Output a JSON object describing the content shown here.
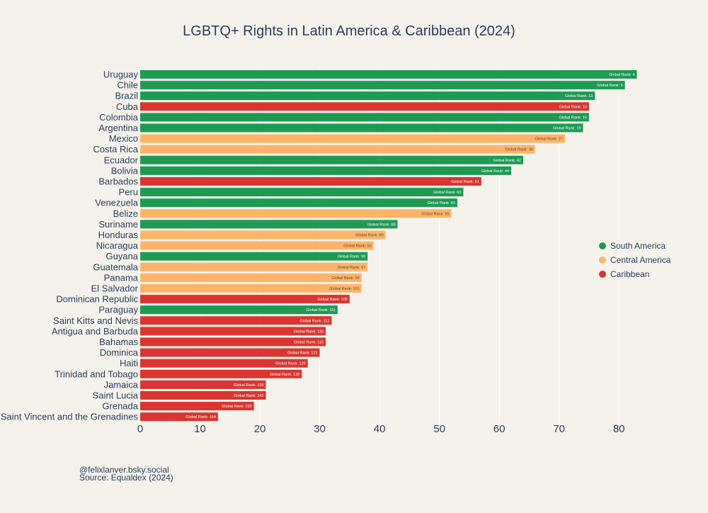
{
  "chart_data": {
    "type": "bar",
    "orientation": "horizontal",
    "title": "LGBTQ+ Rights in Latin America & Caribbean (2024)",
    "xlabel": "",
    "ylabel": "",
    "xlim": [
      0,
      84
    ],
    "xticks": [
      0,
      10,
      20,
      30,
      40,
      50,
      60,
      70,
      80
    ],
    "grid": true,
    "legend_position": "right",
    "colors": {
      "South America": "#1e9a53",
      "Central America": "#fdb469",
      "Caribbean": "#da3530"
    },
    "label_text_colors": {
      "South America": "#ffffff",
      "Central America": "#5a4632",
      "Caribbean": "#ffffff"
    },
    "legend": [
      "South America",
      "Central America",
      "Caribbean"
    ],
    "bars": [
      {
        "country": "Uruguay",
        "value": 83,
        "region": "South America",
        "label": "Global Rank: 4"
      },
      {
        "country": "Chile",
        "value": 81,
        "region": "South America",
        "label": "Global Rank: 5"
      },
      {
        "country": "Brazil",
        "value": 76,
        "region": "South America",
        "label": "Global Rank: 13"
      },
      {
        "country": "Cuba",
        "value": 75,
        "region": "Caribbean",
        "label": "Global Rank: 14"
      },
      {
        "country": "Colombia",
        "value": 75,
        "region": "South America",
        "label": "Global Rank: 16"
      },
      {
        "country": "Argentina",
        "value": 74,
        "region": "South America",
        "label": "Global Rank: 19"
      },
      {
        "country": "Mexico",
        "value": 71,
        "region": "Central America",
        "label": "Global Rank: 27"
      },
      {
        "country": "Costa Rica",
        "value": 66,
        "region": "Central America",
        "label": "Global Rank: 36"
      },
      {
        "country": "Ecuador",
        "value": 64,
        "region": "South America",
        "label": "Global Rank: 42"
      },
      {
        "country": "Bolivia",
        "value": 62,
        "region": "South America",
        "label": "Global Rank: 44"
      },
      {
        "country": "Barbados",
        "value": 57,
        "region": "Caribbean",
        "label": "Global Rank: 51"
      },
      {
        "country": "Peru",
        "value": 54,
        "region": "South America",
        "label": "Global Rank: 60"
      },
      {
        "country": "Venezuela",
        "value": 53,
        "region": "South America",
        "label": "Global Rank: 63"
      },
      {
        "country": "Belize",
        "value": 52,
        "region": "Central America",
        "label": "Global Rank: 65"
      },
      {
        "country": "Suriname",
        "value": 43,
        "region": "South America",
        "label": "Global Rank: 88"
      },
      {
        "country": "Honduras",
        "value": 41,
        "region": "Central America",
        "label": "Global Rank: 90"
      },
      {
        "country": "Nicaragua",
        "value": 39,
        "region": "Central America",
        "label": "Global Rank: 93"
      },
      {
        "country": "Guyana",
        "value": 38,
        "region": "South America",
        "label": "Global Rank: 96"
      },
      {
        "country": "Guatemala",
        "value": 38,
        "region": "Central America",
        "label": "Global Rank: 97"
      },
      {
        "country": "Panama",
        "value": 37,
        "region": "Central America",
        "label": "Global Rank: 99"
      },
      {
        "country": "El Salvador",
        "value": 37,
        "region": "Central America",
        "label": "Global Rank: 101"
      },
      {
        "country": "Dominican Republic",
        "value": 35,
        "region": "Caribbean",
        "label": "Global Rank: 105"
      },
      {
        "country": "Paraguay",
        "value": 33,
        "region": "South America",
        "label": "Global Rank: 111"
      },
      {
        "country": "Saint Kitts and Nevis",
        "value": 32,
        "region": "Caribbean",
        "label": "Global Rank: 112"
      },
      {
        "country": "Antigua and Barbuda",
        "value": 31,
        "region": "Caribbean",
        "label": "Global Rank: 116"
      },
      {
        "country": "Bahamas",
        "value": 31,
        "region": "Caribbean",
        "label": "Global Rank: 115"
      },
      {
        "country": "Dominica",
        "value": 30,
        "region": "Caribbean",
        "label": "Global Rank: 121"
      },
      {
        "country": "Haiti",
        "value": 28,
        "region": "Caribbean",
        "label": "Global Rank: 126"
      },
      {
        "country": "Trinidad and Tobago",
        "value": 27,
        "region": "Caribbean",
        "label": "Global Rank: 128"
      },
      {
        "country": "Jamaica",
        "value": 21,
        "region": "Caribbean",
        "label": "Global Rank: 139"
      },
      {
        "country": "Saint Lucia",
        "value": 21,
        "region": "Caribbean",
        "label": "Global Rank: 142"
      },
      {
        "country": "Grenada",
        "value": 19,
        "region": "Caribbean",
        "label": "Global Rank: 152"
      },
      {
        "country": "Saint Vincent and the Grenadines",
        "value": 13,
        "region": "Caribbean",
        "label": "Global Rank: 164"
      }
    ]
  },
  "footer": {
    "credit": "@felixlanver.bsky.social",
    "source": "Source: Equaldex (2024)"
  }
}
